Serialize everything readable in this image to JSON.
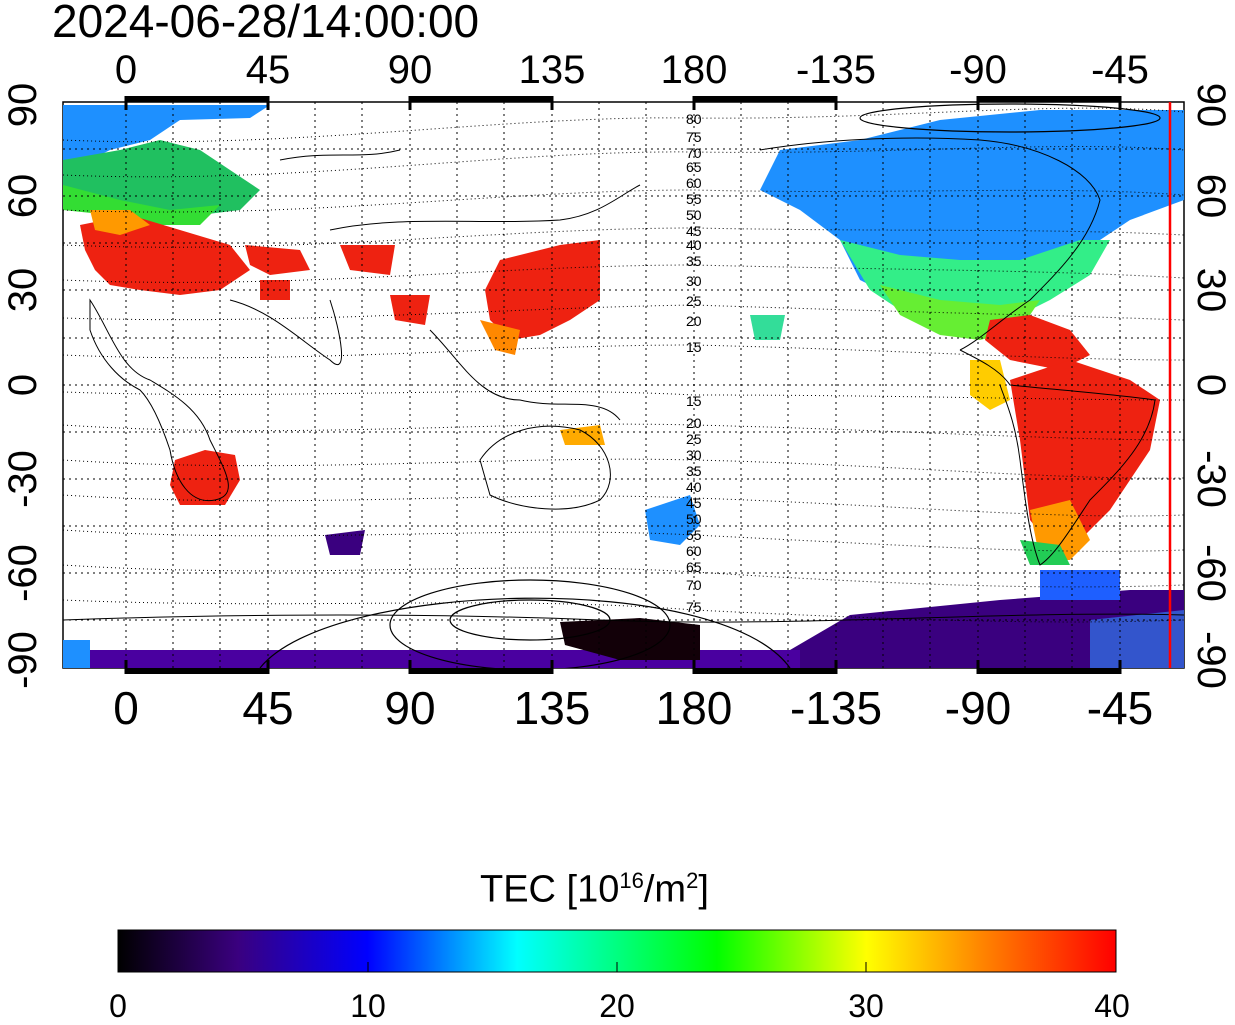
{
  "title": "2024-06-28/14:00:00",
  "map": {
    "lon_ticks_top": [
      "0",
      "45",
      "90",
      "135",
      "180",
      "-135",
      "-90",
      "-45"
    ],
    "lon_ticks_bottom": [
      "0",
      "45",
      "90",
      "135",
      "180",
      "-135",
      "-90",
      "-45"
    ],
    "lat_ticks_left": [
      "90",
      "60",
      "30",
      "0",
      "-30",
      "-60",
      "-90"
    ],
    "lat_ticks_right": [
      "90",
      "60",
      "30",
      "0",
      "-30",
      "-60",
      "-90"
    ],
    "contour_labels_north": [
      "80",
      "75",
      "70",
      "65",
      "60",
      "55",
      "50",
      "45",
      "40",
      "35",
      "30",
      "25",
      "20",
      "15"
    ],
    "contour_labels_south": [
      "15",
      "20",
      "25",
      "30",
      "35",
      "40",
      "45",
      "50",
      "55",
      "60",
      "65",
      "70",
      "75"
    ],
    "terminator_color": "#ff0000",
    "land_outline_color": "#000000",
    "grid": "dotted"
  },
  "colorbar": {
    "label_prefix": "TEC  [10",
    "label_exp": "16",
    "label_mid": "/m",
    "label_exp2": "2",
    "label_suffix": "]",
    "ticks": [
      "0",
      "10",
      "20",
      "30",
      "40"
    ],
    "min": 0,
    "max": 40,
    "colors": [
      "#000000",
      "#3a007f",
      "#0000ff",
      "#00ffff",
      "#00ff00",
      "#ffff00",
      "#ff8000",
      "#ff0000"
    ]
  }
}
